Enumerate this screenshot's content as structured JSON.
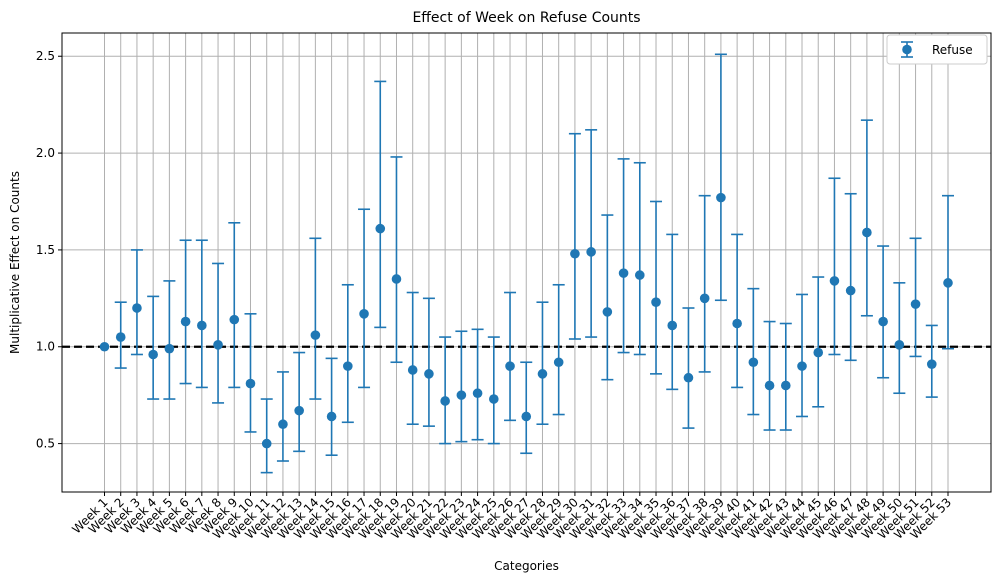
{
  "chart_data": {
    "type": "scatter",
    "title": "Effect of Week on Refuse Counts",
    "xlabel": "Categories",
    "ylabel": "Multiplicative Effect on Counts",
    "ylim": [
      0.25,
      2.62
    ],
    "yticks": [
      0.5,
      1.0,
      1.5,
      2.0,
      2.5
    ],
    "ytick_labels": [
      "0.5",
      "1.0",
      "1.5",
      "2.0",
      "2.5"
    ],
    "grid": true,
    "legend_position": "top-right",
    "reference_line": {
      "y": 1.0,
      "style": "dashed",
      "color": "#000000"
    },
    "colors": {
      "series": "#1f77b4",
      "grid": "#b0b0b0"
    },
    "categories": [
      "Week 1",
      "Week 2",
      "Week 3",
      "Week 4",
      "Week 5",
      "Week 6",
      "Week 7",
      "Week 8",
      "Week 9",
      "Week 10",
      "Week 11",
      "Week 12",
      "Week 13",
      "Week 14",
      "Week 15",
      "Week 16",
      "Week 17",
      "Week 18",
      "Week 19",
      "Week 20",
      "Week 21",
      "Week 22",
      "Week 23",
      "Week 24",
      "Week 25",
      "Week 26",
      "Week 27",
      "Week 28",
      "Week 29",
      "Week 30",
      "Week 31",
      "Week 32",
      "Week 33",
      "Week 34",
      "Week 35",
      "Week 36",
      "Week 37",
      "Week 38",
      "Week 39",
      "Week 40",
      "Week 41",
      "Week 42",
      "Week 43",
      "Week 44",
      "Week 45",
      "Week 46",
      "Week 47",
      "Week 48",
      "Week 49",
      "Week 50",
      "Week 51",
      "Week 52",
      "Week 53"
    ],
    "series": [
      {
        "name": "Refuse",
        "values": [
          1.0,
          1.05,
          1.2,
          0.96,
          0.99,
          1.13,
          1.11,
          1.01,
          1.14,
          0.81,
          0.5,
          0.6,
          0.67,
          1.06,
          0.64,
          0.9,
          1.17,
          1.61,
          1.35,
          0.88,
          0.86,
          0.72,
          0.75,
          0.76,
          0.73,
          0.9,
          0.64,
          0.86,
          0.92,
          1.48,
          1.49,
          1.18,
          1.38,
          1.37,
          1.23,
          1.11,
          0.84,
          1.25,
          1.77,
          1.12,
          0.92,
          0.8,
          0.8,
          0.9,
          0.97,
          1.34,
          1.29,
          1.59,
          1.13,
          1.01,
          1.22,
          0.91,
          1.33
        ],
        "lower": [
          null,
          0.89,
          0.96,
          0.73,
          0.73,
          0.81,
          0.79,
          0.71,
          0.79,
          0.56,
          0.35,
          0.41,
          0.46,
          0.73,
          0.44,
          0.61,
          0.79,
          1.1,
          0.92,
          0.6,
          0.59,
          0.5,
          0.51,
          0.52,
          0.5,
          0.62,
          0.45,
          0.6,
          0.65,
          1.04,
          1.05,
          0.83,
          0.97,
          0.96,
          0.86,
          0.78,
          0.58,
          0.87,
          1.24,
          0.79,
          0.65,
          0.57,
          0.57,
          0.64,
          0.69,
          0.96,
          0.93,
          1.16,
          0.84,
          0.76,
          0.95,
          0.74,
          0.99
        ],
        "upper": [
          null,
          1.23,
          1.5,
          1.26,
          1.34,
          1.55,
          1.55,
          1.43,
          1.64,
          1.17,
          0.73,
          0.87,
          0.97,
          1.56,
          0.94,
          1.32,
          1.71,
          2.37,
          1.98,
          1.28,
          1.25,
          1.05,
          1.08,
          1.09,
          1.05,
          1.28,
          0.92,
          1.23,
          1.32,
          2.1,
          2.12,
          1.68,
          1.97,
          1.95,
          1.75,
          1.58,
          1.2,
          1.78,
          2.51,
          1.58,
          1.3,
          1.13,
          1.12,
          1.27,
          1.36,
          1.87,
          1.79,
          2.17,
          1.52,
          1.33,
          1.56,
          1.11,
          1.78
        ]
      }
    ]
  }
}
